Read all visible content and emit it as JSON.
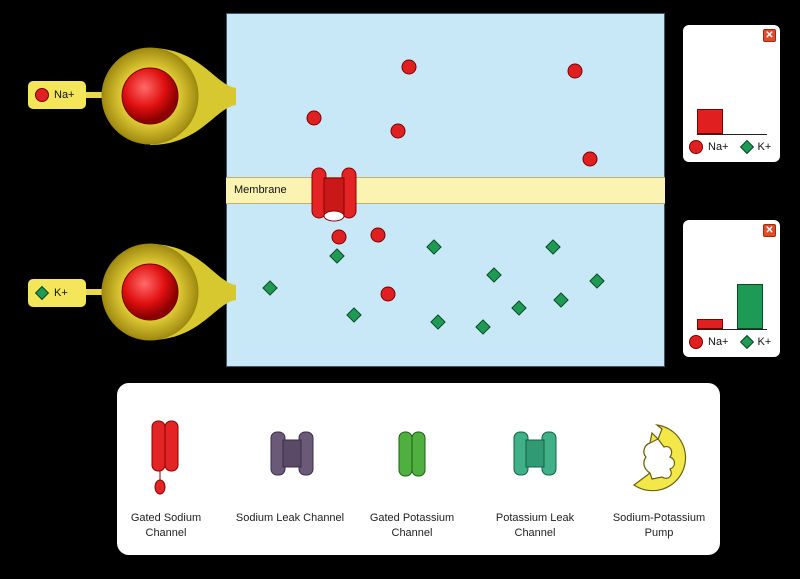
{
  "membrane": {
    "label": "Membrane"
  },
  "dispensers": [
    {
      "label": "Na+",
      "species": "sodium"
    },
    {
      "label": "K+",
      "species": "potassium"
    }
  ],
  "top_chart": {
    "close_label": "✕",
    "legend": [
      "Na+",
      "K+"
    ],
    "values": {
      "Na+": 5,
      "K+": 0
    }
  },
  "bottom_chart": {
    "close_label": "✕",
    "legend": [
      "Na+",
      "K+"
    ],
    "values": {
      "Na+": 2,
      "K+": 9
    }
  },
  "particles": {
    "outside_na_count": 5,
    "inside_na_count": 3,
    "inside_k_count": 13
  },
  "toolbox": {
    "items": [
      {
        "label": "Gated Sodium Channel",
        "icon": "gated-sodium-channel-icon"
      },
      {
        "label": "Sodium Leak Channel",
        "icon": "sodium-leak-channel-icon"
      },
      {
        "label": "Gated Potassium Channel",
        "icon": "gated-potassium-channel-icon"
      },
      {
        "label": "Potassium Leak Channel",
        "icon": "potassium-leak-channel-icon"
      },
      {
        "label": "Sodium-Potassium Pump",
        "icon": "sodium-potassium-pump-icon"
      }
    ]
  },
  "colors": {
    "sodium": "#e02020",
    "potassium": "#1f9a55",
    "extracellular": "#c8e8f8",
    "membrane": "#fbf3b2",
    "dispenser": "#e8d84a"
  }
}
